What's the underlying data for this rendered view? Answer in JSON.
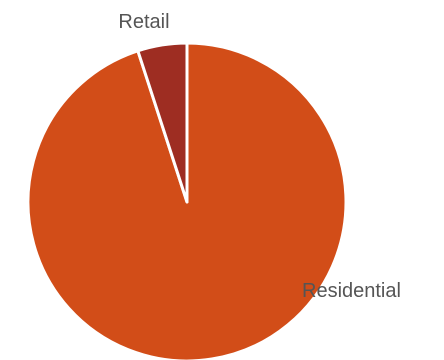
{
  "chart_data": {
    "type": "pie",
    "title": "",
    "slices": [
      {
        "label": "Residential",
        "value": 95,
        "color": "#d24d18"
      },
      {
        "label": "Retail",
        "value": 5,
        "color": "#9e2d22"
      }
    ],
    "start_angle_deg": 0,
    "direction": "clockwise",
    "slice_border_color": "#ffffff",
    "label_color": "#555555"
  }
}
